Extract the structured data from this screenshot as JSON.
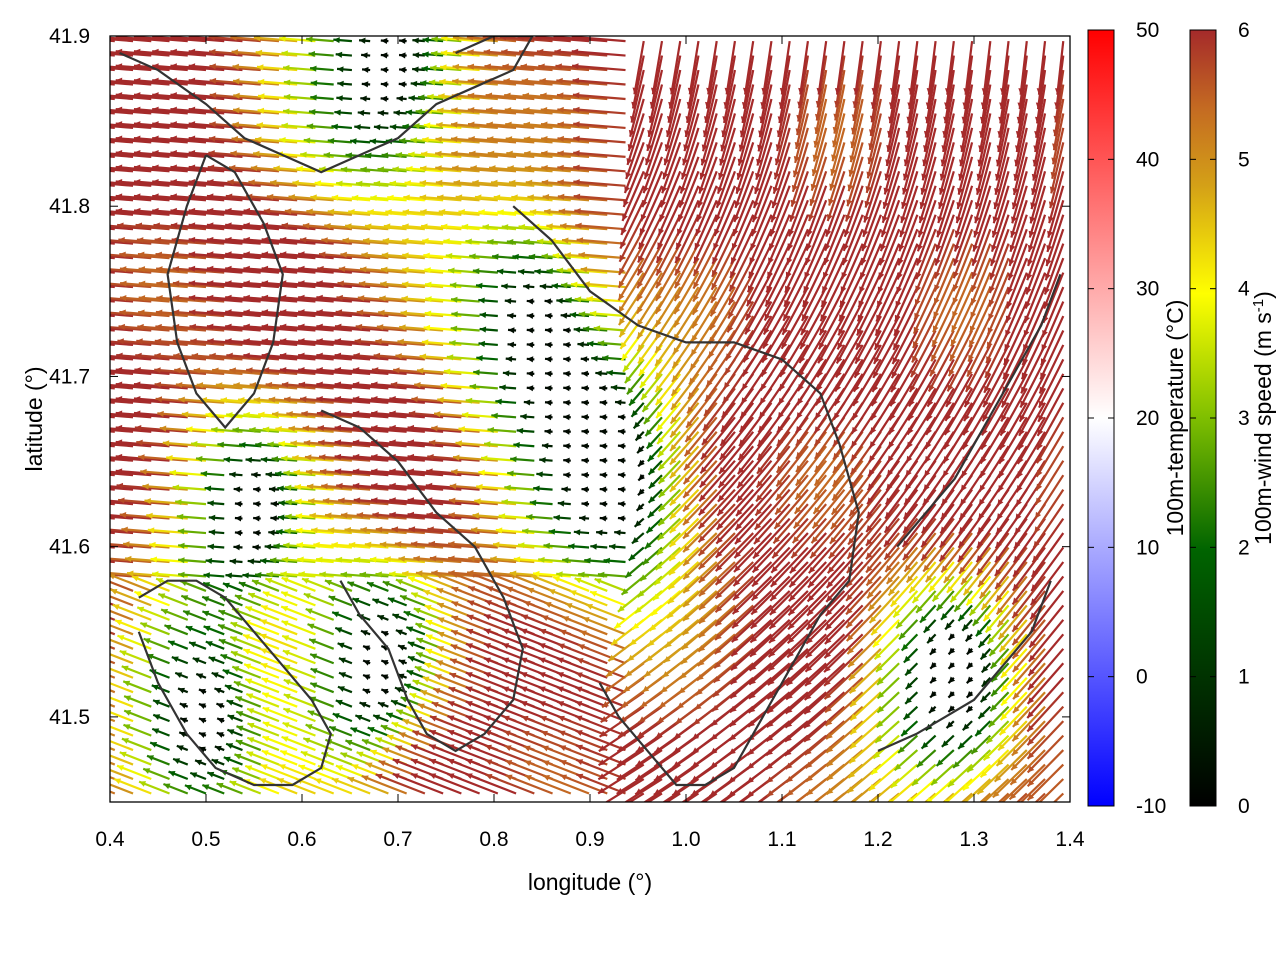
{
  "chart_data": {
    "type": "vector-field",
    "xlabel": "longitude (°)",
    "ylabel": "latitude (°)",
    "xlim": [
      0.4,
      1.4
    ],
    "ylim": [
      41.45,
      41.9
    ],
    "x_ticks": [
      "0.4",
      "0.5",
      "0.6",
      "0.7",
      "0.8",
      "0.9",
      "1.0",
      "1.1",
      "1.2",
      "1.3",
      "1.4"
    ],
    "x_tick_values": [
      0.4,
      0.5,
      0.6,
      0.7,
      0.8,
      0.9,
      1.0,
      1.1,
      1.2,
      1.3,
      1.4
    ],
    "y_ticks": [
      "41.5",
      "41.6",
      "41.7",
      "41.8",
      "41.9"
    ],
    "y_tick_values": [
      41.5,
      41.6,
      41.7,
      41.8,
      41.9
    ],
    "grid": false,
    "colorbars": [
      {
        "name": "temperature",
        "label": "100m-temperature (°C)",
        "range": [
          -10,
          50
        ],
        "tick_labels": [
          "-10",
          "0",
          "10",
          "20",
          "30",
          "40",
          "50"
        ],
        "tick_values": [
          -10,
          0,
          10,
          20,
          30,
          40,
          50
        ],
        "colors": [
          "#0000ff",
          "#ffffff",
          "#ff0000"
        ]
      },
      {
        "name": "wind_speed",
        "label_main": "100m-wind speed (m s",
        "label_sup": "-1",
        "label_end": ")",
        "range": [
          0,
          6
        ],
        "tick_labels": [
          "0",
          "1",
          "2",
          "3",
          "4",
          "5",
          "6"
        ],
        "tick_values": [
          0,
          1,
          2,
          3,
          4,
          5,
          6
        ],
        "colors": [
          "#000000",
          "#006400",
          "#7fbf00",
          "#ffff00",
          "#d4a017",
          "#c46a22",
          "#a52a2a"
        ]
      }
    ],
    "contours": [
      {
        "lon": [
          0.41,
          0.45,
          0.5,
          0.54,
          0.58,
          0.62,
          0.66,
          0.7,
          0.74,
          0.78,
          0.82,
          0.84,
          0.8,
          0.76
        ],
        "lat": [
          41.89,
          41.88,
          41.86,
          41.84,
          41.83,
          41.82,
          41.83,
          41.84,
          41.86,
          41.87,
          41.88,
          41.9,
          41.9,
          41.89
        ]
      },
      {
        "lon": [
          0.5,
          0.53,
          0.56,
          0.58,
          0.57,
          0.55,
          0.52,
          0.49,
          0.47,
          0.46,
          0.48,
          0.5
        ],
        "lat": [
          41.83,
          41.82,
          41.79,
          41.76,
          41.72,
          41.69,
          41.67,
          41.69,
          41.72,
          41.76,
          41.8,
          41.83
        ]
      },
      {
        "lon": [
          0.82,
          0.86,
          0.9,
          0.95,
          1.0,
          1.05,
          1.1,
          1.14,
          1.16,
          1.18,
          1.17,
          1.14,
          1.11,
          1.09,
          1.07,
          1.05,
          1.02,
          0.99,
          0.96,
          0.93,
          0.91
        ],
        "lat": [
          41.8,
          41.78,
          41.75,
          41.73,
          41.72,
          41.72,
          41.71,
          41.69,
          41.66,
          41.62,
          41.58,
          41.56,
          41.53,
          41.51,
          41.49,
          41.47,
          41.46,
          41.46,
          41.48,
          41.5,
          41.52
        ]
      },
      {
        "lon": [
          0.62,
          0.66,
          0.7,
          0.74,
          0.78,
          0.81,
          0.83,
          0.82,
          0.79,
          0.76,
          0.73,
          0.71,
          0.69,
          0.66,
          0.64
        ],
        "lat": [
          41.68,
          41.67,
          41.65,
          41.62,
          41.6,
          41.57,
          41.54,
          41.51,
          41.49,
          41.48,
          41.49,
          41.51,
          41.54,
          41.56,
          41.58
        ]
      },
      {
        "lon": [
          0.43,
          0.46,
          0.49,
          0.52,
          0.55,
          0.58,
          0.61,
          0.63,
          0.62,
          0.59,
          0.55,
          0.51,
          0.48,
          0.45,
          0.43
        ],
        "lat": [
          41.57,
          41.58,
          41.58,
          41.57,
          41.55,
          41.53,
          41.51,
          41.49,
          41.47,
          41.46,
          41.46,
          41.47,
          41.49,
          41.52,
          41.55
        ]
      },
      {
        "lon": [
          1.22,
          1.25,
          1.28,
          1.31,
          1.34,
          1.37,
          1.39
        ],
        "lat": [
          41.6,
          41.62,
          41.64,
          41.67,
          41.7,
          41.73,
          41.76
        ]
      },
      {
        "lon": [
          1.2,
          1.24,
          1.27,
          1.3,
          1.33,
          1.36,
          1.38
        ],
        "lat": [
          41.48,
          41.49,
          41.5,
          41.51,
          41.53,
          41.55,
          41.58
        ]
      }
    ]
  }
}
